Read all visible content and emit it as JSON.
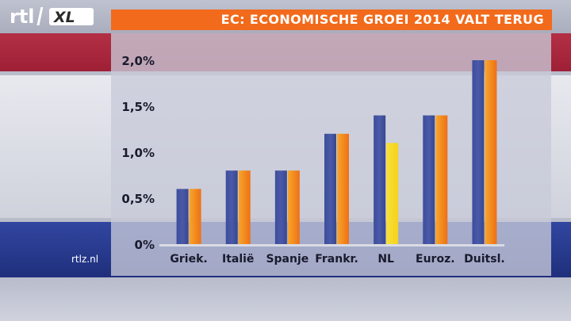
{
  "header": {
    "logo_text": "rtl XL",
    "title": "EC: ECONOMISCHE GROEI 2014 VALT TERUG"
  },
  "footer": {
    "source": "rtlz.nl"
  },
  "colors": {
    "title_bar": "#f26a1b",
    "series_1": "#4a5aa8",
    "series_2": "#f28c1e",
    "series_2_highlight": "#f5d21c",
    "flag_red": "#b02a42",
    "flag_blue": "#26389a"
  },
  "chart_data": {
    "type": "bar",
    "title": "EC: ECONOMISCHE GROEI 2014 VALT TERUG",
    "xlabel": "",
    "ylabel": "",
    "categories": [
      "Griek.",
      "Italië",
      "Spanje",
      "Frankr.",
      "NL",
      "Euroz.",
      "Duitsl."
    ],
    "series": [
      {
        "values": [
          0.6,
          0.8,
          0.8,
          1.2,
          1.4,
          1.4,
          2.0
        ]
      },
      {
        "values": [
          0.6,
          0.8,
          0.8,
          1.2,
          1.1,
          1.4,
          2.0
        ]
      }
    ],
    "y_ticks": [
      "2,0%",
      "1,5%",
      "1,0%",
      "0,5%",
      "0%"
    ],
    "y_tick_values": [
      2.0,
      1.5,
      1.0,
      0.5,
      0
    ],
    "ylim": [
      0,
      2.0
    ],
    "highlighted_category": "NL",
    "grid": false,
    "legend": "none"
  }
}
